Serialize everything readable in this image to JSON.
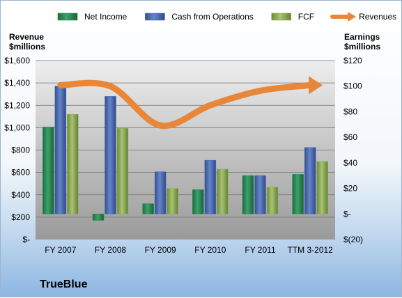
{
  "chart_data": {
    "type": "bar",
    "categories": [
      "FY 2007",
      "FY 2008",
      "FY 2009",
      "FY 2010",
      "FY 2011",
      "TTM 3-2012"
    ],
    "series": [
      {
        "name": "Net Income",
        "axis": "right",
        "color": "#2e8b57",
        "values": [
          68,
          -5,
          8,
          19,
          30,
          31
        ]
      },
      {
        "name": "Cash from Operations",
        "axis": "right",
        "color": "#4f6fb3",
        "values": [
          100,
          92,
          33,
          42,
          30,
          52
        ]
      },
      {
        "name": "FCF",
        "axis": "right",
        "color": "#8fae5a",
        "values": [
          78,
          67,
          20,
          35,
          21,
          41
        ]
      },
      {
        "name": "Revenues",
        "axis": "left",
        "type": "line",
        "color": "#e8873a",
        "values": [
          1380,
          1370,
          1020,
          1200,
          1330,
          1380
        ]
      }
    ],
    "left_axis": {
      "title_line1": "Revenue",
      "title_line2": "$millions",
      "ylim": [
        0,
        1600
      ],
      "ticks": [
        0,
        200,
        400,
        600,
        800,
        1000,
        1200,
        1400,
        1600
      ],
      "tick_labels": [
        "$-",
        "$200",
        "$400",
        "$600",
        "$800",
        "$1,000",
        "$1,200",
        "$1,400",
        "$1,600"
      ]
    },
    "right_axis": {
      "title_line1": "Earnings",
      "title_line2": "$millions",
      "ylim": [
        -20,
        120
      ],
      "ticks": [
        -20,
        0,
        20,
        40,
        60,
        80,
        100,
        120
      ],
      "tick_labels": [
        "$(20)",
        "$-",
        "$20",
        "$40",
        "$60",
        "$80",
        "$100",
        "$120"
      ]
    },
    "legend_position": "top",
    "grid": true,
    "company": "TrueBlue"
  }
}
